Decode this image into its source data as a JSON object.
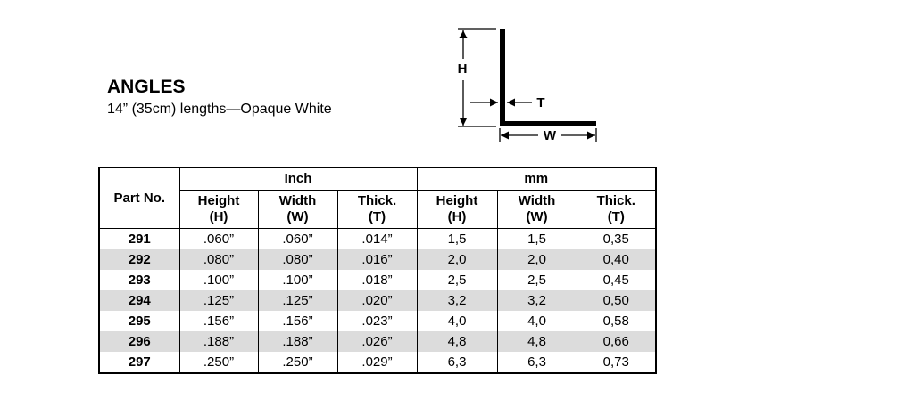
{
  "header": {
    "title": "ANGLES",
    "subtitle": "14” (35cm) lengths—Opaque White"
  },
  "diagram": {
    "labels": [
      "H",
      "T",
      "W"
    ]
  },
  "table": {
    "part_header": "Part No.",
    "groups": [
      "Inch",
      "mm"
    ],
    "subheaders": [
      {
        "name": "Height",
        "symbol": "(H)"
      },
      {
        "name": "Width",
        "symbol": "(W)"
      },
      {
        "name": "Thick.",
        "symbol": "(T)"
      },
      {
        "name": "Height",
        "symbol": "(H)"
      },
      {
        "name": "Width",
        "symbol": "(W)"
      },
      {
        "name": "Thick.",
        "symbol": "(T)"
      }
    ],
    "rows": [
      [
        "291",
        ".060”",
        ".060”",
        ".014”",
        "1,5",
        "1,5",
        "0,35"
      ],
      [
        "292",
        ".080”",
        ".080”",
        ".016”",
        "2,0",
        "2,0",
        "0,40"
      ],
      [
        "293",
        ".100”",
        ".100”",
        ".018”",
        "2,5",
        "2,5",
        "0,45"
      ],
      [
        "294",
        ".125”",
        ".125”",
        ".020”",
        "3,2",
        "3,2",
        "0,50"
      ],
      [
        "295",
        ".156”",
        ".156”",
        ".023”",
        "4,0",
        "4,0",
        "0,58"
      ],
      [
        "296",
        ".188”",
        ".188”",
        ".026”",
        "4,8",
        "4,8",
        "0,66"
      ],
      [
        "297",
        ".250”",
        ".250”",
        ".029”",
        "6,3",
        "6,3",
        "0,73"
      ]
    ]
  }
}
